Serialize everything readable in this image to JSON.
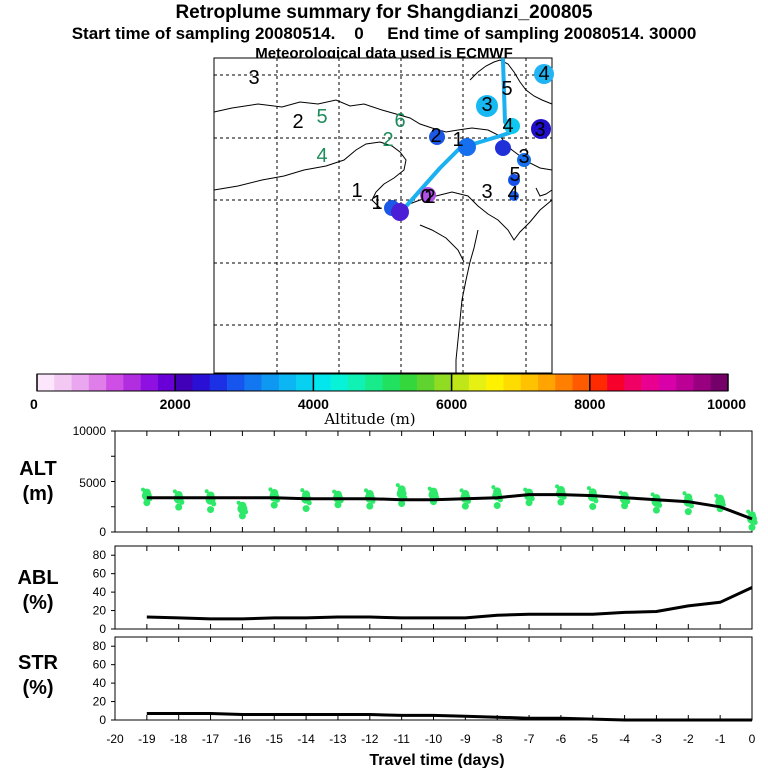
{
  "titles": {
    "line1": "Retroplume summary for Shangdianzi_200805",
    "line2": "Start time of sampling 20080514.    0     End time of sampling 20080514. 30000",
    "line3": "Meteorological data used is ECMWF"
  },
  "colorbar": {
    "label": "Altitude  (m)",
    "tick_labels": [
      "0",
      "2000",
      "4000",
      "6000",
      "8000",
      "10000"
    ],
    "colors": [
      "#fbe6fb",
      "#f3c9f3",
      "#eaa6ef",
      "#e07ee9",
      "#cf4fe6",
      "#b02ee0",
      "#8f11e2",
      "#6a00d8",
      "#4100b8",
      "#2a10d4",
      "#1c30e6",
      "#1655ee",
      "#1277f0",
      "#0e98f2",
      "#0cb6f2",
      "#08d0f0",
      "#04e6ee",
      "#08f2d8",
      "#10f2b4",
      "#18ec8a",
      "#20e260",
      "#34d83c",
      "#5fd42e",
      "#8fdc22",
      "#bfe618",
      "#e6f012",
      "#fff200",
      "#ffdc00",
      "#ffc200",
      "#ffa400",
      "#ff8000",
      "#ff5a00",
      "#ff2a00",
      "#f8002c",
      "#f00064",
      "#ea0090",
      "#d800a8",
      "#bc0096",
      "#980080",
      "#74006a"
    ]
  },
  "map": {
    "point_labels": [
      {
        "text": "1",
        "color": "#000000"
      },
      {
        "text": "1",
        "color": "#000000"
      },
      {
        "text": "2",
        "color": "#000000"
      },
      {
        "text": "2",
        "color": "#1e8c5c"
      },
      {
        "text": "5",
        "color": "#1e8c5c"
      },
      {
        "text": "6",
        "color": "#1e8c5c"
      },
      {
        "text": "4",
        "color": "#1e8c5c"
      },
      {
        "text": "3",
        "color": "#000000"
      },
      {
        "text": "2",
        "color": "#000000"
      },
      {
        "text": "2",
        "color": "#000000"
      },
      {
        "text": "3",
        "color": "#000000"
      },
      {
        "text": "4",
        "color": "#000000"
      },
      {
        "text": "5",
        "color": "#000000"
      },
      {
        "text": "3",
        "color": "#000000"
      },
      {
        "text": "4",
        "color": "#000000"
      },
      {
        "text": "3",
        "color": "#000000"
      },
      {
        "text": "4",
        "color": "#000000"
      },
      {
        "text": "5",
        "color": "#000000"
      },
      {
        "text": "1",
        "color": "#000000"
      },
      {
        "text": "3",
        "color": "#000000"
      },
      {
        "text": "0",
        "color": "#000000"
      }
    ]
  },
  "panels": {
    "alt_label": [
      "ALT",
      "(m)"
    ],
    "abl_label": [
      "ABL",
      "(%)"
    ],
    "str_label": [
      "STR",
      "(%)"
    ],
    "alt_ticks": [
      "10000",
      "5000",
      "0"
    ],
    "pct_ticks": [
      "80",
      "60",
      "40",
      "20",
      "0"
    ],
    "x_ticks": [
      "-20",
      "-19",
      "-18",
      "-17",
      "-16",
      "-15",
      "-14",
      "-13",
      "-12",
      "-11",
      "-10",
      "-9",
      "-8",
      "-7",
      "-6",
      "-5",
      "-4",
      "-3",
      "-2",
      "-1",
      "0"
    ],
    "x_label": "Travel time (days)"
  },
  "chart_data": [
    {
      "type": "line",
      "title": "ALT (m)",
      "xlabel": "Travel time (days)",
      "ylabel": "ALT (m)",
      "xlim": [
        -20,
        0
      ],
      "ylim": [
        0,
        10000
      ],
      "x": [
        -19,
        -18,
        -17,
        -16,
        -15,
        -14,
        -13,
        -12,
        -11,
        -10,
        -9,
        -8,
        -7,
        -6,
        -5,
        -4,
        -3,
        -2,
        -1,
        0
      ],
      "series": [
        {
          "name": "mean altitude",
          "values": [
            3400,
            3400,
            3400,
            3400,
            3400,
            3300,
            3300,
            3300,
            3200,
            3200,
            3300,
            3400,
            3700,
            3700,
            3600,
            3400,
            3200,
            3000,
            2500,
            1300
          ]
        },
        {
          "name": "particle altitude spread (green dots)",
          "values": [
            3600,
            3300,
            3200,
            2300,
            3500,
            3300,
            3400,
            3400,
            3800,
            3700,
            3400,
            3600,
            3600,
            3800,
            3500,
            3300,
            3000,
            3000,
            3000,
            1300
          ]
        }
      ]
    },
    {
      "type": "line",
      "title": "ABL (%)",
      "xlabel": "Travel time (days)",
      "ylabel": "ABL (%)",
      "xlim": [
        -20,
        0
      ],
      "ylim": [
        0,
        90
      ],
      "x": [
        -19,
        -18,
        -17,
        -16,
        -15,
        -14,
        -13,
        -12,
        -11,
        -10,
        -9,
        -8,
        -7,
        -6,
        -5,
        -4,
        -3,
        -2,
        -1,
        0
      ],
      "series": [
        {
          "name": "ABL fraction",
          "values": [
            13,
            12,
            11,
            11,
            12,
            12,
            13,
            13,
            12,
            12,
            12,
            15,
            16,
            16,
            16,
            18,
            19,
            25,
            29,
            45
          ]
        }
      ]
    },
    {
      "type": "line",
      "title": "STR (%)",
      "xlabel": "Travel time (days)",
      "ylabel": "STR (%)",
      "xlim": [
        -20,
        0
      ],
      "ylim": [
        0,
        90
      ],
      "x": [
        -19,
        -18,
        -17,
        -16,
        -15,
        -14,
        -13,
        -12,
        -11,
        -10,
        -9,
        -8,
        -7,
        -6,
        -5,
        -4,
        -3,
        -2,
        -1,
        0
      ],
      "series": [
        {
          "name": "STR fraction",
          "values": [
            7,
            7,
            7,
            6,
            6,
            6,
            6,
            6,
            5,
            5,
            4,
            3,
            2,
            2,
            1,
            0,
            0,
            0,
            0,
            0
          ]
        }
      ]
    }
  ]
}
